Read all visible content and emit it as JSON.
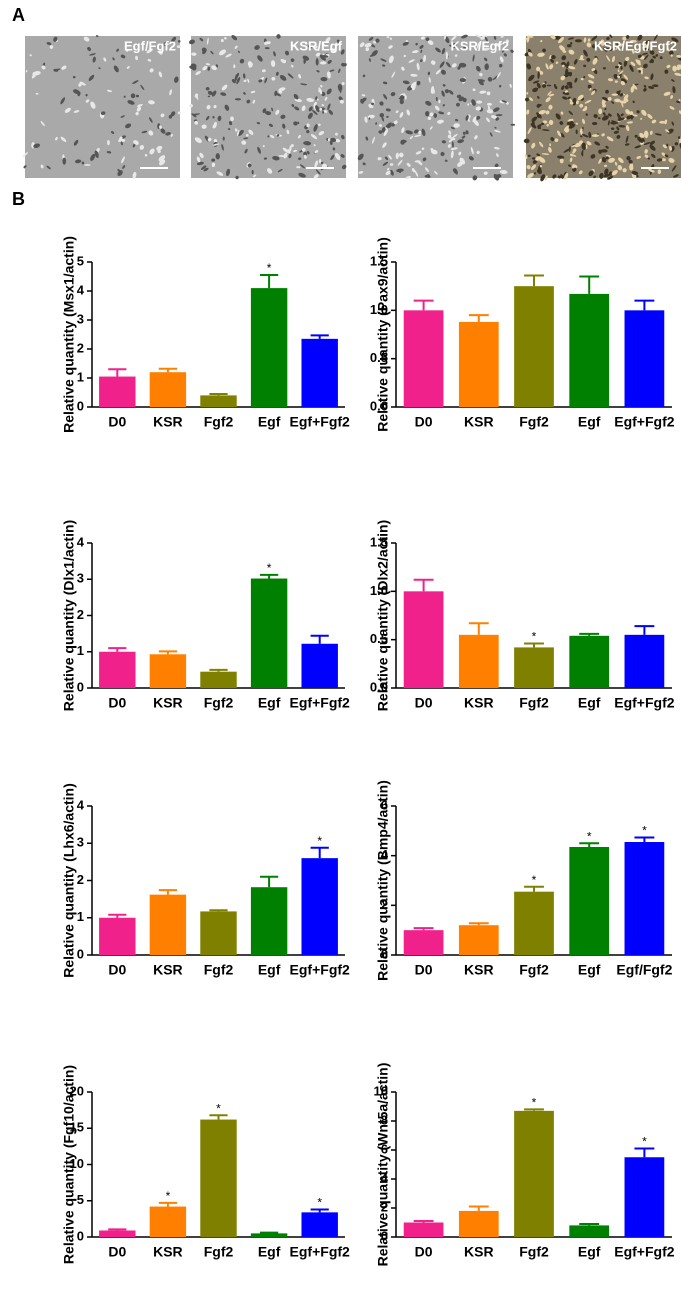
{
  "figure": {
    "panel_labels": [
      "A",
      "B"
    ],
    "images": [
      "Egf/Fgf2",
      "KSR/Egf",
      "KSR/Fgf2",
      "KSR/Egf/Fgf2"
    ]
  },
  "chart_data": [
    {
      "type": "bar",
      "y_label": "Relative quantity (Msx1/actin)",
      "categories": [
        "D0",
        "KSR",
        "Fgf2",
        "Egf",
        "Egf+Fgf2"
      ],
      "values": [
        1.05,
        1.2,
        0.4,
        4.1,
        2.35
      ],
      "errors": [
        0.25,
        0.12,
        0.05,
        0.45,
        0.12
      ],
      "marks": [
        null,
        null,
        null,
        "*",
        null
      ],
      "colors": [
        "#f0218a",
        "#ff8000",
        "#808000",
        "#008000",
        "#0000ff"
      ],
      "ylim": [
        0,
        5
      ],
      "yticks": [
        0,
        1,
        2,
        3,
        4,
        5
      ]
    },
    {
      "type": "bar",
      "y_label": "Relative quantity (Pax9/actin)",
      "categories": [
        "D0",
        "KSR",
        "Fgf2",
        "Egf",
        "Egf+Fgf2"
      ],
      "values": [
        1.0,
        0.88,
        1.25,
        1.17,
        1.0
      ],
      "errors": [
        0.1,
        0.07,
        0.11,
        0.18,
        0.1
      ],
      "marks": [
        null,
        null,
        null,
        null,
        null
      ],
      "colors": [
        "#f0218a",
        "#ff8000",
        "#808000",
        "#008000",
        "#0000ff"
      ],
      "ylim": [
        0,
        1.5
      ],
      "yticks": [
        {
          "value": 0,
          "label": "0.0"
        },
        0.5,
        {
          "value": 1,
          "label": "1.0"
        },
        1.5
      ]
    },
    {
      "type": "bar",
      "y_label": "Relative quantity (Dlx1/actin)",
      "categories": [
        "D0",
        "KSR",
        "Fgf2",
        "Egf",
        "Egf+Fgf2"
      ],
      "values": [
        1.0,
        0.93,
        0.45,
        3.02,
        1.22
      ],
      "errors": [
        0.1,
        0.08,
        0.05,
        0.1,
        0.22
      ],
      "marks": [
        null,
        null,
        null,
        "*",
        null
      ],
      "colors": [
        "#f0218a",
        "#ff8000",
        "#808000",
        "#008000",
        "#0000ff"
      ],
      "ylim": [
        0,
        4
      ],
      "yticks": [
        0,
        1,
        2,
        3,
        4
      ]
    },
    {
      "type": "bar",
      "y_label": "Relative quantity (Dlx2/actin)",
      "categories": [
        "D0",
        "KSR",
        "Fgf2",
        "Egf",
        "Egf+Fgf2"
      ],
      "values": [
        1.0,
        0.55,
        0.42,
        0.54,
        0.55
      ],
      "errors": [
        0.12,
        0.12,
        0.04,
        0.02,
        0.09
      ],
      "marks": [
        null,
        null,
        "*",
        null,
        null
      ],
      "colors": [
        "#f0218a",
        "#ff8000",
        "#808000",
        "#008000",
        "#0000ff"
      ],
      "ylim": [
        0,
        1.5
      ],
      "yticks": [
        {
          "value": 0,
          "label": "0.0"
        },
        0.5,
        {
          "value": 1,
          "label": "1.0"
        },
        1.5
      ]
    },
    {
      "type": "bar",
      "y_label": "Relative quantity (Lhx6/actin)",
      "categories": [
        "D0",
        "KSR",
        "Fgf2",
        "Egf",
        "Egf+Fgf2"
      ],
      "values": [
        1.0,
        1.62,
        1.17,
        1.82,
        2.6
      ],
      "errors": [
        0.08,
        0.12,
        0.03,
        0.28,
        0.28
      ],
      "marks": [
        null,
        null,
        null,
        null,
        "*"
      ],
      "colors": [
        "#f0218a",
        "#ff8000",
        "#808000",
        "#008000",
        "#0000ff"
      ],
      "ylim": [
        0,
        4
      ],
      "yticks": [
        0,
        1,
        2,
        3,
        4
      ]
    },
    {
      "type": "bar",
      "y_label": "Relative quantity (Bmp4/actin)",
      "categories": [
        "D0",
        "KSR",
        "Fgf2",
        "Egf",
        "Egf/Fgf2"
      ],
      "values": [
        1.0,
        1.2,
        2.55,
        4.35,
        4.55
      ],
      "errors": [
        0.08,
        0.08,
        0.2,
        0.15,
        0.18
      ],
      "marks": [
        null,
        null,
        "*",
        "*",
        "*"
      ],
      "colors": [
        "#f0218a",
        "#ff8000",
        "#808000",
        "#008000",
        "#0000ff"
      ],
      "ylim": [
        0,
        6
      ],
      "yticks": [
        0,
        2,
        4,
        6
      ]
    },
    {
      "type": "bar",
      "y_label": "Relative quantity (Fgf10/actin)",
      "categories": [
        "D0",
        "KSR",
        "Fgf2",
        "Egf",
        "Egf+Fgf2"
      ],
      "values": [
        0.9,
        4.2,
        16.2,
        0.5,
        3.4
      ],
      "errors": [
        0.15,
        0.5,
        0.6,
        0.1,
        0.4
      ],
      "marks": [
        null,
        "*",
        "*",
        null,
        "*"
      ],
      "colors": [
        "#f0218a",
        "#ff8000",
        "#808000",
        "#008000",
        "#0000ff"
      ],
      "ylim": [
        0,
        20
      ],
      "yticks": [
        0,
        5,
        10,
        15,
        20
      ]
    },
    {
      "type": "bar",
      "y_label": "Relative quantity (Wnt5a/actin)",
      "categories": [
        "D0",
        "KSR",
        "Fgf2",
        "Egf",
        "Egf+Fgf2"
      ],
      "values": [
        1.0,
        1.8,
        8.7,
        0.8,
        5.5
      ],
      "errors": [
        0.1,
        0.3,
        0.1,
        0.1,
        0.6
      ],
      "marks": [
        null,
        null,
        "*",
        null,
        "*"
      ],
      "colors": [
        "#f0218a",
        "#ff8000",
        "#808000",
        "#008000",
        "#0000ff"
      ],
      "ylim": [
        0,
        10
      ],
      "yticks": [
        0,
        2,
        4,
        6,
        8,
        10
      ]
    }
  ]
}
